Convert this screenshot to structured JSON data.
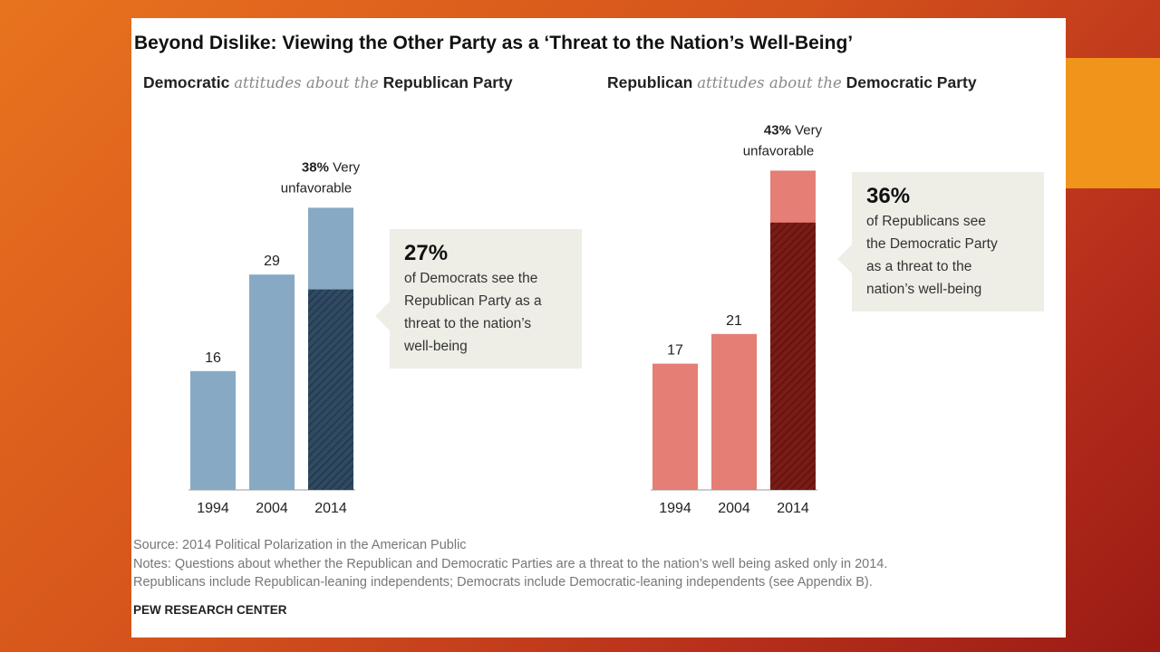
{
  "title": "Beyond Dislike: Viewing the Other Party as a ‘Threat to the Nation’s Well-Being’",
  "panels": [
    {
      "sub_a": "Democratic",
      "sub_b": "attitudes about the",
      "sub_c": "Republican Party",
      "top_pct": "38%",
      "top_rest": " Very",
      "top_line2": "unfavorable",
      "callout_pct": "27%",
      "callout_lines": [
        "of Democrats see the",
        "Republican Party as a",
        "threat to the nation’s",
        "well-being"
      ]
    },
    {
      "sub_a": "Republican",
      "sub_b": "attitudes about the",
      "sub_c": "Democratic Party",
      "top_pct": "43%",
      "top_rest": " Very",
      "top_line2": "unfavorable",
      "callout_pct": "36%",
      "callout_lines": [
        "of Republicans see",
        "the Democratic Party",
        "as a threat to the",
        "nation’s well-being"
      ]
    }
  ],
  "chart_data": [
    {
      "type": "bar",
      "title": "Democratic attitudes about the Republican Party",
      "categories": [
        "1994",
        "2004",
        "2014"
      ],
      "series": [
        {
          "name": "Very unfavorable",
          "values": [
            16,
            29,
            38
          ]
        }
      ],
      "threat_2014": 27,
      "colors": {
        "bar": "#87a9c4",
        "threat": "#2f4a62"
      }
    },
    {
      "type": "bar",
      "title": "Republican attitudes about the Democratic Party",
      "categories": [
        "1994",
        "2004",
        "2014"
      ],
      "series": [
        {
          "name": "Very unfavorable",
          "values": [
            17,
            21,
            43
          ]
        }
      ],
      "threat_2014": 36,
      "colors": {
        "bar": "#e57e74",
        "threat": "#7a1c16"
      }
    }
  ],
  "footer": {
    "source": "Source: 2014 Political Polarization in the American Public",
    "notes1": "Notes: Questions about whether the Republican and Democratic Parties are a threat to the nation’s well being asked only in 2014.",
    "notes2": "Republicans include Republican-leaning independents; Democrats include Democratic-leaning independents (see Appendix B).",
    "org": "PEW RESEARCH CENTER"
  }
}
